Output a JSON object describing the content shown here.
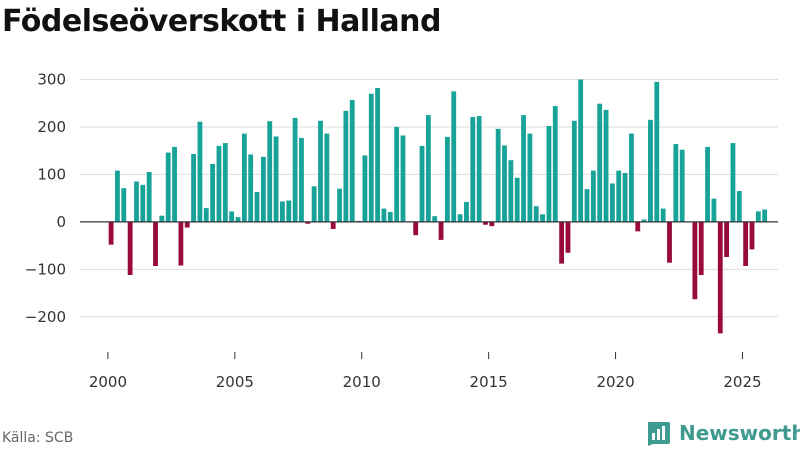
{
  "header": {
    "title": "Födelseöverskott i Halland"
  },
  "footer": {
    "source": "Källa: SCB",
    "brand": "Newsworthy"
  },
  "colors": {
    "positive": "#17a398",
    "negative": "#990a3d",
    "grid": "#dddddd",
    "brand": "#3f9a8f"
  },
  "chart_data": {
    "type": "bar",
    "title": "Födelseöverskott i Halland",
    "xlabel": "",
    "ylabel": "",
    "xlim": [
      1998.9,
      2026.4
    ],
    "ylim": [
      -270,
      320
    ],
    "y_ticks": [
      300,
      200,
      100,
      0,
      -100,
      -200
    ],
    "y_tick_labels": [
      "300",
      "200",
      "100",
      "0",
      "−100",
      "−200"
    ],
    "x_ticks": [
      2000,
      2005,
      2010,
      2015,
      2020,
      2025
    ],
    "x_tick_labels": [
      "2000",
      "2005",
      "2010",
      "2015",
      "2020",
      "2025"
    ],
    "bar_width_years": 0.19,
    "start": 2000.125,
    "step": 0.25,
    "values": [
      -48,
      108,
      71,
      -112,
      85,
      78,
      105,
      -93,
      13,
      146,
      158,
      -92,
      -12,
      143,
      211,
      29,
      122,
      160,
      166,
      22,
      10,
      186,
      142,
      63,
      137,
      212,
      180,
      43,
      45,
      219,
      177,
      -4,
      75,
      213,
      186,
      -15,
      70,
      234,
      257,
      2,
      140,
      270,
      282,
      28,
      21,
      200,
      182,
      0,
      -28,
      160,
      225,
      12,
      -38,
      179,
      275,
      16,
      42,
      221,
      223,
      -6,
      -9,
      196,
      161,
      130,
      93,
      225,
      186,
      33,
      16,
      202,
      244,
      -88,
      -65,
      213,
      300,
      69,
      108,
      249,
      236,
      81,
      108,
      103,
      186,
      -20,
      5,
      215,
      295,
      28,
      -86,
      164,
      152,
      0,
      -163,
      -112,
      158,
      49,
      -235,
      -74,
      166,
      65,
      -93,
      -58,
      22,
      26
    ]
  }
}
